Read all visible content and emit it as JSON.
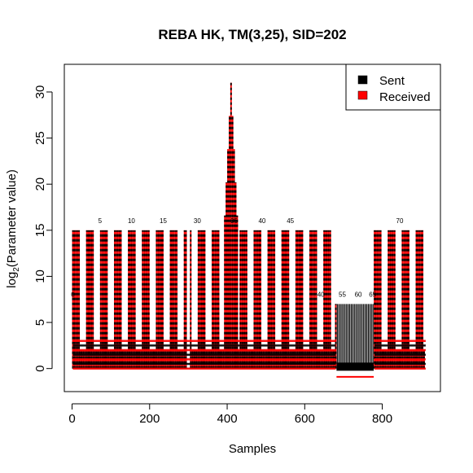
{
  "chart_data": {
    "type": "line",
    "title": "REBA HK, TM(3,25), SID=202",
    "xlabel": "Samples",
    "ylabel_base": "log",
    "ylabel_sub": "2",
    "ylabel_rest": "(Parameter value)",
    "xlim": [
      -20,
      950
    ],
    "ylim": [
      -2.5,
      33
    ],
    "x_ticks": [
      0,
      200,
      400,
      600,
      800
    ],
    "y_ticks": [
      0,
      5,
      10,
      15,
      20,
      25,
      30
    ],
    "legend": {
      "position": "top-right",
      "entries": [
        {
          "label": "Sent",
          "color": "#000000"
        },
        {
          "label": "Received",
          "color": "#ff0000"
        }
      ]
    },
    "colors": {
      "sent": "#000000",
      "received": "#ff0000"
    },
    "sample_labels": [
      {
        "text": "0",
        "x": 2,
        "y": 7.8
      },
      {
        "text": "5",
        "x": 72,
        "y": 15.8
      },
      {
        "text": "10",
        "x": 153,
        "y": 15.8
      },
      {
        "text": "15",
        "x": 235,
        "y": 15.8
      },
      {
        "text": "30",
        "x": 323,
        "y": 15.8
      },
      {
        "text": "35",
        "x": 418,
        "y": 15.8
      },
      {
        "text": "40",
        "x": 490,
        "y": 15.8
      },
      {
        "text": "45",
        "x": 563,
        "y": 15.8
      },
      {
        "text": "40",
        "x": 642,
        "y": 7.8
      },
      {
        "text": "55",
        "x": 697,
        "y": 7.8
      },
      {
        "text": "60",
        "x": 738,
        "y": 7.8
      },
      {
        "text": "65",
        "x": 775,
        "y": 7.8
      },
      {
        "text": "70",
        "x": 845,
        "y": 15.8
      }
    ],
    "series": [
      {
        "name": "Sent",
        "color": "#000000",
        "spike_segments": [
          {
            "x_start": 2,
            "x_end": 680,
            "step": 4,
            "pattern": [
              15,
              15,
              15,
              15,
              15,
              2,
              2,
              2,
              2
            ],
            "ends_with": [
              7,
              7
            ]
          },
          {
            "x_start": 680,
            "x_end": 780,
            "step": 4,
            "pattern": [
              7
            ]
          },
          {
            "x_start": 780,
            "x_end": 912,
            "step": 4,
            "pattern": [
              15,
              15,
              15,
              15,
              15,
              2,
              2,
              2,
              2
            ]
          }
        ],
        "features": [
          {
            "type": "peak",
            "x": 410,
            "y": 31
          },
          {
            "type": "dip",
            "x": 300,
            "y": 0
          }
        ]
      },
      {
        "name": "Received",
        "color": "#ff0000",
        "features": [
          {
            "type": "baseline",
            "x_start": 682,
            "x_end": 778,
            "y": -0.9
          }
        ]
      }
    ]
  }
}
